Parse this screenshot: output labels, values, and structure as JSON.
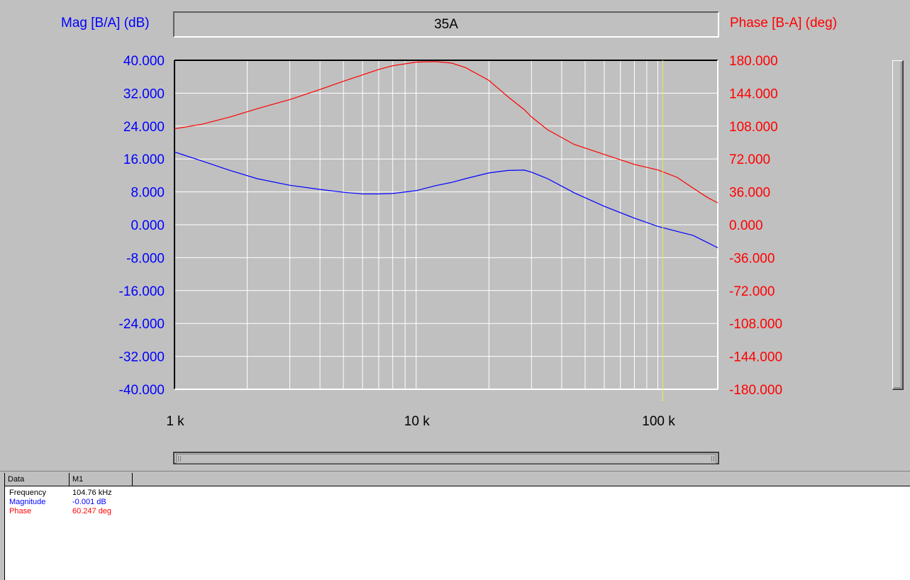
{
  "title": "35A",
  "mag_axis_title": "Mag [B/A] (dB)",
  "phase_axis_title": "Phase [B-A] (deg)",
  "colors": {
    "magnitude": "#0000ff",
    "phase": "#ff0000",
    "cursor": "#e8e860",
    "grid": "#ffffff",
    "background": "#c0c0c0"
  },
  "chart_data": {
    "type": "line",
    "x_scale": "log",
    "xlim": [
      1000,
      177000
    ],
    "x_ticks": [
      {
        "value": 1000,
        "label": "1 k"
      },
      {
        "value": 10000,
        "label": "10 k"
      },
      {
        "value": 100000,
        "label": "100 k"
      }
    ],
    "y_left": {
      "label": "Mag [B/A] (dB)",
      "lim": [
        -40,
        40
      ],
      "ticks": [
        "40.000",
        "32.000",
        "24.000",
        "16.000",
        "8.000",
        "0.000",
        "-8.000",
        "-16.000",
        "-24.000",
        "-32.000",
        "-40.000"
      ]
    },
    "y_right": {
      "label": "Phase [B-A] (deg)",
      "lim": [
        -180,
        180
      ],
      "ticks": [
        "180.000",
        "144.000",
        "108.000",
        "72.000",
        "36.000",
        "0.000",
        "-36.000",
        "-72.000",
        "-108.000",
        "-144.000",
        "-180.000"
      ]
    },
    "grid": true,
    "series": [
      {
        "name": "Magnitude",
        "axis": "left",
        "color": "#0000ff",
        "x": [
          1000,
          1300,
          1700,
          2200,
          3000,
          4000,
          5000,
          6000,
          7000,
          8000,
          10000,
          12000,
          14000,
          16000,
          20000,
          24000,
          28000,
          30000,
          35000,
          45000,
          60000,
          80000,
          100000,
          120000,
          140000,
          160000,
          177000
        ],
        "y": [
          17.7,
          15.5,
          13.2,
          11.2,
          9.6,
          8.6,
          7.9,
          7.5,
          7.5,
          7.6,
          8.3,
          9.5,
          10.3,
          11.2,
          12.6,
          13.2,
          13.3,
          12.8,
          11.2,
          7.8,
          4.5,
          1.6,
          -0.4,
          -1.6,
          -2.6,
          -4.3,
          -5.6
        ]
      },
      {
        "name": "Phase",
        "axis": "right",
        "color": "#ff0000",
        "x": [
          1000,
          1300,
          1700,
          2200,
          3000,
          4000,
          5000,
          6000,
          7000,
          8000,
          10000,
          12000,
          14000,
          16000,
          20000,
          24000,
          28000,
          30000,
          35000,
          45000,
          60000,
          80000,
          100000,
          120000,
          140000,
          160000,
          177000
        ],
        "y": [
          105,
          110,
          118,
          127,
          137,
          148,
          157,
          164,
          170,
          174,
          178,
          178.5,
          177,
          172,
          158,
          140,
          126,
          118,
          104,
          88,
          77,
          66,
          60,
          52,
          40,
          30,
          24
        ]
      }
    ],
    "cursor": {
      "x": 104760,
      "label": "1"
    }
  },
  "readout": {
    "headers": {
      "data": "Data",
      "m1": "M1"
    },
    "rows": [
      {
        "label": "Frequency",
        "value": "104.76 kHz",
        "color": "#000000"
      },
      {
        "label": "Magnitude",
        "value": "-0.001 dB",
        "color": "#0000ff"
      },
      {
        "label": "Phase",
        "value": "60.247 deg",
        "color": "#ff0000"
      }
    ]
  }
}
